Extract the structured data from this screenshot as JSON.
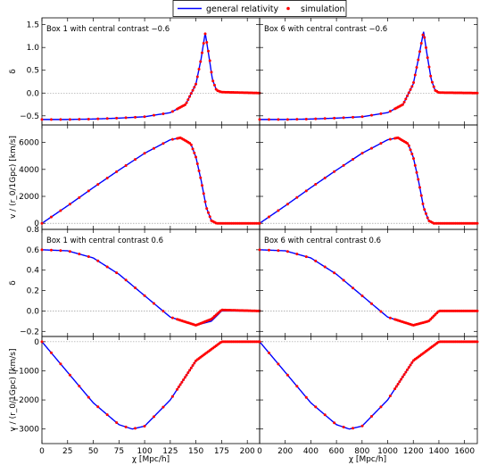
{
  "legend": {
    "gr_label": "general relativity",
    "sim_label": "simulation"
  },
  "colors": {
    "gr": "#0000ff",
    "sim": "#ff0000",
    "zero_line": "#888888"
  },
  "xaxis": {
    "label": "χ [Mpc/h]",
    "left_ticks": [
      0,
      25,
      50,
      75,
      100,
      125,
      150,
      175,
      200
    ],
    "right_ticks": [
      0,
      200,
      400,
      600,
      800,
      1000,
      1200,
      1400,
      1600
    ],
    "left_range": [
      0,
      212
    ],
    "right_range": [
      0,
      1700
    ]
  },
  "rows": [
    {
      "kind": "delta",
      "ylabel": "δ",
      "ylim": [
        -0.7,
        1.65
      ],
      "yticks": [
        -0.5,
        0.0,
        0.5,
        1.0,
        1.5
      ],
      "ytick_labels": [
        "−0.5",
        "0.0",
        "0.5",
        "1.0",
        "1.5"
      ]
    },
    {
      "kind": "velocity",
      "ylabel": "v / (r_0/1Gpc) [km/s]",
      "ylim": [
        -450,
        7300
      ],
      "yticks": [
        0,
        2000,
        4000,
        6000
      ],
      "ytick_labels": [
        "0",
        "2000",
        "4000",
        "6000"
      ]
    },
    {
      "kind": "delta",
      "ylabel": "δ",
      "ylim": [
        -0.25,
        0.8
      ],
      "yticks": [
        -0.2,
        0.0,
        0.2,
        0.4,
        0.6,
        0.8
      ],
      "ytick_labels": [
        "−0.2",
        "0.0",
        "0.2",
        "0.4",
        "0.6",
        "0.8"
      ]
    },
    {
      "kind": "velocity",
      "ylabel": "v / (r_0/1Gpc) [km/s]",
      "ylim": [
        -3500,
        180
      ],
      "yticks": [
        -3000,
        -2000,
        -1000,
        0
      ],
      "ytick_labels": [
        "−3000",
        "−2000",
        "−1000",
        "0"
      ]
    }
  ],
  "titles": {
    "r0_left": "Box 1 with central contrast −0.6",
    "r0_right": "Box 6 with central contrast −0.6",
    "r2_left": "Box 1 with central contrast 0.6",
    "r2_right": "Box 6 with central contrast 0.6"
  },
  "chart_data": [
    {
      "type": "line",
      "panel": "Box 1 with central contrast -0.6, density",
      "x": [
        0,
        25,
        50,
        75,
        100,
        125,
        140,
        150,
        155,
        159,
        163,
        166,
        170,
        175,
        212
      ],
      "series": [
        {
          "name": "general relativity",
          "values": [
            -0.58,
            -0.58,
            -0.57,
            -0.55,
            -0.52,
            -0.43,
            -0.25,
            0.2,
            0.75,
            1.32,
            0.75,
            0.3,
            0.06,
            0.01,
            0.0
          ]
        },
        {
          "name": "simulation",
          "values": [
            -0.58,
            -0.58,
            -0.57,
            -0.55,
            -0.52,
            -0.43,
            -0.25,
            0.2,
            0.75,
            1.3,
            0.8,
            0.3,
            0.06,
            0.02,
            0.0
          ]
        }
      ]
    },
    {
      "type": "line",
      "panel": "Box 6 with central contrast -0.6, density",
      "x": [
        0,
        200,
        400,
        600,
        800,
        1000,
        1120,
        1200,
        1240,
        1280,
        1310,
        1340,
        1370,
        1400,
        1700
      ],
      "series": [
        {
          "name": "general relativity",
          "values": [
            -0.58,
            -0.58,
            -0.57,
            -0.55,
            -0.52,
            -0.43,
            -0.25,
            0.2,
            0.75,
            1.35,
            0.8,
            0.3,
            0.06,
            0.01,
            0.0
          ]
        },
        {
          "name": "simulation",
          "values": [
            -0.58,
            -0.58,
            -0.57,
            -0.55,
            -0.52,
            -0.43,
            -0.25,
            0.2,
            0.75,
            1.35,
            0.8,
            0.3,
            0.06,
            0.01,
            0.0
          ]
        }
      ]
    },
    {
      "type": "line",
      "panel": "Box 1, central contrast -0.6, velocity",
      "x": [
        0,
        25,
        50,
        75,
        100,
        125,
        135,
        145,
        150,
        155,
        160,
        165,
        170,
        212
      ],
      "series": [
        {
          "name": "general relativity",
          "values": [
            0,
            1300,
            2650,
            3950,
            5200,
            6200,
            6350,
            5900,
            4900,
            3200,
            1200,
            200,
            0,
            0
          ]
        },
        {
          "name": "simulation",
          "values": [
            0,
            1300,
            2650,
            3950,
            5200,
            6200,
            6350,
            5900,
            4900,
            3200,
            1200,
            200,
            0,
            0
          ]
        }
      ]
    },
    {
      "type": "line",
      "panel": "Box 6, central contrast -0.6, velocity",
      "x": [
        0,
        200,
        400,
        600,
        800,
        1000,
        1080,
        1160,
        1200,
        1240,
        1280,
        1320,
        1360,
        1700
      ],
      "series": [
        {
          "name": "general relativity",
          "values": [
            0,
            1300,
            2650,
            3950,
            5200,
            6200,
            6350,
            5900,
            4900,
            3200,
            1200,
            200,
            0,
            0
          ]
        },
        {
          "name": "simulation",
          "values": [
            0,
            1300,
            2650,
            3950,
            5200,
            6200,
            6350,
            5900,
            4900,
            3200,
            1200,
            200,
            0,
            0
          ]
        }
      ]
    },
    {
      "type": "line",
      "panel": "Box 1 with central contrast 0.6, density",
      "x": [
        0,
        25,
        50,
        75,
        100,
        125,
        150,
        165,
        175,
        212
      ],
      "series": [
        {
          "name": "general relativity",
          "values": [
            0.6,
            0.59,
            0.52,
            0.36,
            0.15,
            -0.06,
            -0.14,
            -0.1,
            0.0,
            0.0
          ]
        },
        {
          "name": "simulation",
          "values": [
            0.6,
            0.59,
            0.52,
            0.36,
            0.15,
            -0.06,
            -0.14,
            -0.08,
            0.01,
            0.0
          ]
        }
      ]
    },
    {
      "type": "line",
      "panel": "Box 6 with central contrast 0.6, density",
      "x": [
        0,
        200,
        400,
        600,
        800,
        1000,
        1200,
        1320,
        1400,
        1700
      ],
      "series": [
        {
          "name": "general relativity",
          "values": [
            0.6,
            0.59,
            0.52,
            0.36,
            0.15,
            -0.06,
            -0.14,
            -0.1,
            0.0,
            0.0
          ]
        },
        {
          "name": "simulation",
          "values": [
            0.6,
            0.59,
            0.52,
            0.36,
            0.15,
            -0.06,
            -0.14,
            -0.1,
            0.0,
            0.0
          ]
        }
      ]
    },
    {
      "type": "line",
      "panel": "Box 1, central contrast 0.6, velocity",
      "x": [
        0,
        25,
        50,
        75,
        88,
        100,
        125,
        150,
        175,
        212
      ],
      "series": [
        {
          "name": "general relativity",
          "values": [
            0,
            -1050,
            -2100,
            -2850,
            -3000,
            -2900,
            -2000,
            -650,
            0,
            0
          ]
        },
        {
          "name": "simulation",
          "values": [
            0,
            -1050,
            -2100,
            -2850,
            -3000,
            -2900,
            -2000,
            -650,
            0,
            0
          ]
        }
      ]
    },
    {
      "type": "line",
      "panel": "Box 6, central contrast 0.6, velocity",
      "x": [
        0,
        200,
        400,
        600,
        700,
        800,
        1000,
        1200,
        1400,
        1700
      ],
      "series": [
        {
          "name": "general relativity",
          "values": [
            0,
            -1050,
            -2100,
            -2850,
            -3000,
            -2900,
            -2000,
            -650,
            0,
            0
          ]
        },
        {
          "name": "simulation",
          "values": [
            0,
            -1050,
            -2100,
            -2850,
            -3000,
            -2900,
            -2000,
            -650,
            0,
            0
          ]
        }
      ]
    }
  ]
}
